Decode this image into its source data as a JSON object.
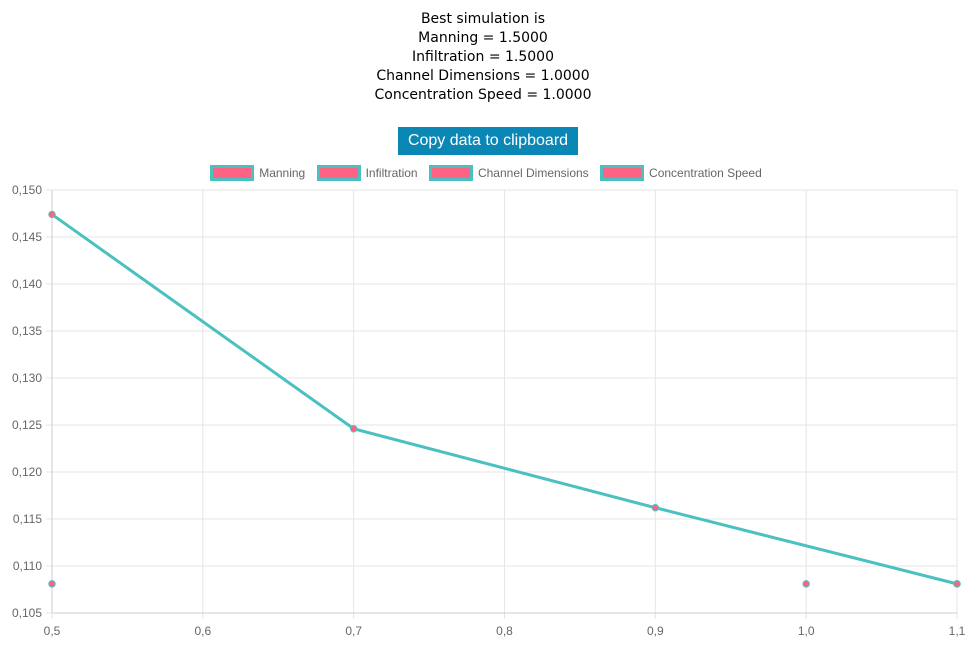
{
  "summary": {
    "line1": "Best simulation is",
    "line2": "Manning = 1.5000",
    "line3": "Infiltration = 1.5000",
    "line4": "Channel Dimensions = 1.0000",
    "line5": "Concentration Speed = 1.0000"
  },
  "copy_button_label": "Copy data to clipboard",
  "colors": {
    "button": "#0b87b5",
    "line": "#4bc0c0",
    "point": "#ff6384",
    "grid": "#e6e6e6",
    "tick_text": "#666666"
  },
  "chart_data": {
    "type": "line",
    "title": "",
    "xlabel": "",
    "ylabel": "",
    "xlim": [
      0.5,
      1.1
    ],
    "ylim": [
      0.105,
      0.15
    ],
    "x_ticks": [
      "0,5",
      "0,6",
      "0,7",
      "0,8",
      "0,9",
      "1,0",
      "1,1"
    ],
    "y_ticks": [
      "0,150",
      "0,145",
      "0,140",
      "0,135",
      "0,130",
      "0,125",
      "0,120",
      "0,115",
      "0,110",
      "0,105"
    ],
    "grid": true,
    "legend_position": "top",
    "legend": [
      "Manning",
      "Infiltration",
      "Channel Dimensions",
      "Concentration Speed"
    ],
    "series": [
      {
        "name": "Manning",
        "points": [
          {
            "x": 0.5,
            "y": 0.1474
          },
          {
            "x": 0.7,
            "y": 0.1246
          },
          {
            "x": 0.9,
            "y": 0.1162
          },
          {
            "x": 1.1,
            "y": 0.1081
          }
        ],
        "show_line": true
      },
      {
        "name": "Infiltration",
        "points": [
          {
            "x": 0.5,
            "y": 0.1081
          },
          {
            "x": 1.0,
            "y": 0.1081
          },
          {
            "x": 1.1,
            "y": 0.1081
          }
        ],
        "show_line": false
      }
    ]
  }
}
